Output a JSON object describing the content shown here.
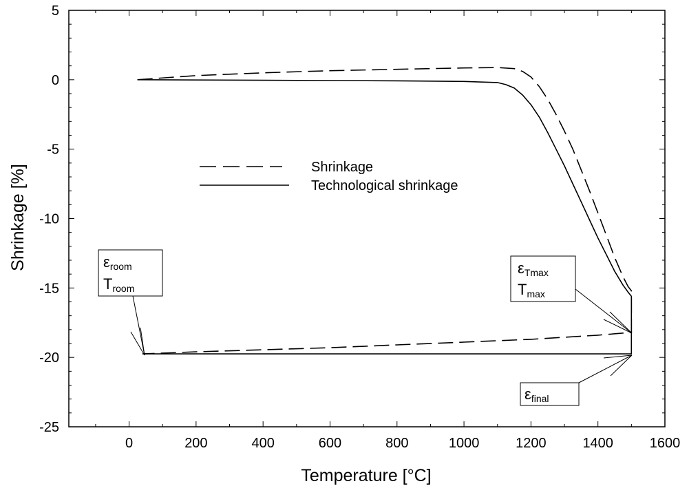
{
  "chart_data": {
    "type": "line",
    "xlabel": "Temperature  [°C]",
    "ylabel": "Shrinkage  [%]",
    "xlim": [
      -180,
      1600
    ],
    "ylim": [
      -25,
      5
    ],
    "xticks": [
      0,
      200,
      400,
      600,
      800,
      1000,
      1200,
      1400,
      1600
    ],
    "yticks": [
      5,
      0,
      -5,
      -10,
      -15,
      -20,
      -25
    ],
    "xtick_labels": [
      "0",
      "200",
      "400",
      "600",
      "800",
      "1000",
      "1200",
      "1400",
      "1600"
    ],
    "ytick_labels": [
      "5",
      "0",
      "-5",
      "-10",
      "-15",
      "-20",
      "-25"
    ],
    "grid": false,
    "legend_position": "center-left",
    "series": [
      {
        "name": "Shrinkage",
        "style": "dashed",
        "color": "#000000",
        "points": [
          [
            25,
            0
          ],
          [
            200,
            0.3
          ],
          [
            400,
            0.5
          ],
          [
            600,
            0.65
          ],
          [
            800,
            0.75
          ],
          [
            1000,
            0.85
          ],
          [
            1100,
            0.88
          ],
          [
            1150,
            0.8
          ],
          [
            1175,
            0.6
          ],
          [
            1200,
            0.2
          ],
          [
            1225,
            -0.5
          ],
          [
            1250,
            -1.4
          ],
          [
            1275,
            -2.5
          ],
          [
            1300,
            -3.7
          ],
          [
            1325,
            -5
          ],
          [
            1350,
            -6.5
          ],
          [
            1375,
            -8
          ],
          [
            1400,
            -9.6
          ],
          [
            1425,
            -11.2
          ],
          [
            1450,
            -12.8
          ],
          [
            1475,
            -14.2
          ],
          [
            1490,
            -14.9
          ],
          [
            1500,
            -15.2
          ],
          [
            1500,
            -18.2
          ],
          [
            1400,
            -18.4
          ],
          [
            1200,
            -18.7
          ],
          [
            1000,
            -18.9
          ],
          [
            800,
            -19.1
          ],
          [
            600,
            -19.3
          ],
          [
            400,
            -19.45
          ],
          [
            200,
            -19.6
          ],
          [
            40,
            -19.75
          ]
        ]
      },
      {
        "name": "Technological shrinkage",
        "style": "solid",
        "color": "#000000",
        "points": [
          [
            25,
            0
          ],
          [
            200,
            -0.02
          ],
          [
            400,
            -0.04
          ],
          [
            600,
            -0.06
          ],
          [
            800,
            -0.08
          ],
          [
            1000,
            -0.12
          ],
          [
            1100,
            -0.2
          ],
          [
            1125,
            -0.35
          ],
          [
            1150,
            -0.6
          ],
          [
            1175,
            -1.1
          ],
          [
            1200,
            -1.8
          ],
          [
            1225,
            -2.7
          ],
          [
            1250,
            -3.8
          ],
          [
            1275,
            -5
          ],
          [
            1300,
            -6.2
          ],
          [
            1325,
            -7.5
          ],
          [
            1350,
            -8.8
          ],
          [
            1375,
            -10.1
          ],
          [
            1400,
            -11.4
          ],
          [
            1425,
            -12.6
          ],
          [
            1450,
            -13.8
          ],
          [
            1475,
            -14.8
          ],
          [
            1490,
            -15.3
          ],
          [
            1500,
            -15.6
          ],
          [
            1500,
            -19.75
          ],
          [
            1200,
            -19.75
          ],
          [
            800,
            -19.75
          ],
          [
            400,
            -19.75
          ],
          [
            40,
            -19.75
          ]
        ]
      }
    ],
    "annotations": [
      {
        "id": "room",
        "main1": "ε",
        "sub1": "room",
        "main2": "T",
        "sub2": "room",
        "arrow_to": [
          40,
          -19.75
        ]
      },
      {
        "id": "tmax",
        "main1": "ε",
        "sub1": "Tmax",
        "main2": "T",
        "sub2": "max",
        "arrow_to": [
          1500,
          -18.2
        ]
      },
      {
        "id": "final",
        "main1": "ε",
        "sub1": "final",
        "arrow_to": [
          1500,
          -19.75
        ]
      }
    ]
  }
}
